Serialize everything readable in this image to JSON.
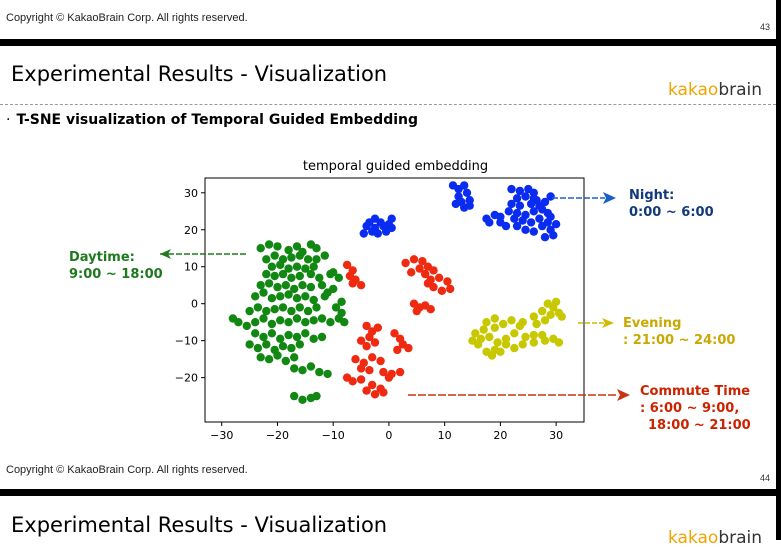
{
  "slides": [
    {
      "copyright": "Copyright © KakaoBrain Corp. All rights reserved.",
      "page_number": "43",
      "title": "Experimental Results - Visualization",
      "logo": {
        "part1": "kakao",
        "part2": "brain"
      },
      "bullet": "T-SNE visualization of Temporal Guided Embedding"
    },
    {
      "copyright": "Copyright © KakaoBrain Corp. All rights reserved.",
      "page_number": "44",
      "title": "Experimental Results - Visualization",
      "logo": {
        "part1": "kakao",
        "part2": "brain"
      }
    }
  ],
  "annotations": {
    "daytime": {
      "line1": "Daytime:",
      "line2": "9:00 ~ 18:00",
      "color": "#1e7a1e"
    },
    "night": {
      "line1": "Night:",
      "line2": "0:00 ~ 6:00",
      "color": "#123a7a"
    },
    "evening": {
      "line1": "Evening",
      "line2": ": 21:00 ~ 24:00",
      "color": "#c9a800"
    },
    "commute": {
      "line1": "Commute Time",
      "line2": ": 6:00 ~ 9:00,",
      "line3": "18:00 ~ 21:00",
      "color": "#cc2200"
    }
  },
  "colors": {
    "accent": "#f0a500",
    "night": "#0a2cf0",
    "day": "#118811",
    "commute": "#f02a10",
    "evening": "#c8c800"
  },
  "chart_data": {
    "type": "scatter",
    "title": "temporal guided embedding",
    "xlabel": "",
    "ylabel": "",
    "xlim": [
      -33,
      35
    ],
    "ylim": [
      -32,
      34
    ],
    "xticks": [
      -30,
      -20,
      -10,
      0,
      10,
      20,
      30
    ],
    "yticks": [
      30,
      20,
      10,
      0,
      -10,
      -20
    ],
    "xtick_labels": [
      "−30",
      "−20",
      "−10",
      "0",
      "10",
      "20",
      "30"
    ],
    "ytick_labels": [
      "30",
      "20",
      "10",
      "0",
      "−10",
      "−20"
    ],
    "grid": false,
    "series": [
      {
        "color": "#0a2cf0",
        "points": [
          [
            11.5,
            32
          ],
          [
            12.5,
            31
          ],
          [
            13.5,
            32
          ],
          [
            14,
            30
          ],
          [
            12.5,
            29
          ],
          [
            13,
            27.5
          ],
          [
            14.5,
            28
          ],
          [
            12,
            27
          ],
          [
            13.5,
            26
          ],
          [
            14.5,
            26.5
          ],
          [
            22,
            31
          ],
          [
            23.5,
            30.5
          ],
          [
            25,
            31
          ],
          [
            26,
            30
          ],
          [
            24.5,
            29
          ],
          [
            23,
            28.5
          ],
          [
            26.5,
            28
          ],
          [
            25.5,
            27
          ],
          [
            23.5,
            26.5
          ],
          [
            22,
            27
          ],
          [
            21.5,
            25
          ],
          [
            23,
            24.5
          ],
          [
            24.5,
            24
          ],
          [
            26,
            25
          ],
          [
            27.5,
            25.5
          ],
          [
            28.5,
            24.5
          ],
          [
            27,
            23
          ],
          [
            25.5,
            22
          ],
          [
            24,
            22.5
          ],
          [
            22.5,
            23
          ],
          [
            20,
            23.5
          ],
          [
            19,
            24
          ],
          [
            17.5,
            23
          ],
          [
            18,
            22
          ],
          [
            20,
            22
          ],
          [
            21,
            21
          ],
          [
            23,
            21
          ],
          [
            24.5,
            20
          ],
          [
            26,
            19.5
          ],
          [
            27.5,
            21
          ],
          [
            28.5,
            22
          ],
          [
            29,
            20
          ],
          [
            29.5,
            18.5
          ],
          [
            28,
            18
          ],
          [
            30,
            21.5
          ],
          [
            29,
            23.5
          ],
          [
            27,
            26.5
          ],
          [
            28,
            27.5
          ],
          [
            29,
            29
          ],
          [
            26,
            28.5
          ],
          [
            -3.5,
            22
          ],
          [
            -2.5,
            23
          ],
          [
            -1.5,
            22
          ],
          [
            -1,
            21
          ],
          [
            -2.5,
            20.5
          ],
          [
            -4,
            21
          ],
          [
            -3,
            19.5
          ],
          [
            -4.5,
            19
          ],
          [
            0,
            21.5
          ],
          [
            0.5,
            23
          ],
          [
            -0.5,
            19.5
          ],
          [
            -2,
            19
          ],
          [
            0.5,
            20.5
          ]
        ]
      },
      {
        "color": "#118811",
        "points": [
          [
            -23,
            15
          ],
          [
            -21.5,
            16
          ],
          [
            -20,
            15.5
          ],
          [
            -18,
            14.5
          ],
          [
            -16.5,
            15.5
          ],
          [
            -15.5,
            14
          ],
          [
            -14,
            16
          ],
          [
            -13,
            15
          ],
          [
            -22,
            12
          ],
          [
            -20.5,
            13
          ],
          [
            -19,
            12
          ],
          [
            -17.5,
            12.5
          ],
          [
            -16,
            13
          ],
          [
            -14.5,
            12
          ],
          [
            -13,
            12
          ],
          [
            -11.5,
            13
          ],
          [
            -21,
            10
          ],
          [
            -19.5,
            10.5
          ],
          [
            -18,
            9.5
          ],
          [
            -16.5,
            10
          ],
          [
            -15,
            9.5
          ],
          [
            -13.5,
            10
          ],
          [
            -22,
            8
          ],
          [
            -20.5,
            7.5
          ],
          [
            -19,
            8
          ],
          [
            -17.5,
            7
          ],
          [
            -16,
            7.5
          ],
          [
            -14,
            8
          ],
          [
            -12.5,
            7
          ],
          [
            -10.5,
            8
          ],
          [
            -23,
            5
          ],
          [
            -21.5,
            5.5
          ],
          [
            -20,
            4.5
          ],
          [
            -18.5,
            5
          ],
          [
            -17,
            4
          ],
          [
            -15.5,
            5
          ],
          [
            -14,
            4.5
          ],
          [
            -12,
            5
          ],
          [
            -10,
            4
          ],
          [
            -24,
            2
          ],
          [
            -22.5,
            3
          ],
          [
            -21,
            1.5
          ],
          [
            -19.5,
            2
          ],
          [
            -18,
            2.5
          ],
          [
            -16.5,
            1.5
          ],
          [
            -15,
            2
          ],
          [
            -13.5,
            1
          ],
          [
            -11.5,
            2
          ],
          [
            -28,
            -4
          ],
          [
            -27,
            -5
          ],
          [
            -25.5,
            -6
          ],
          [
            -24,
            -5
          ],
          [
            -22.5,
            -4
          ],
          [
            -21,
            -5.5
          ],
          [
            -19.5,
            -4.5
          ],
          [
            -18,
            -5
          ],
          [
            -16.5,
            -4
          ],
          [
            -15,
            -5
          ],
          [
            -13.5,
            -4.5
          ],
          [
            -12,
            -4
          ],
          [
            -10.5,
            -5
          ],
          [
            -25,
            -2
          ],
          [
            -23.5,
            -1
          ],
          [
            -22,
            -2
          ],
          [
            -20.5,
            -1.5
          ],
          [
            -19,
            -1
          ],
          [
            -17.5,
            -2
          ],
          [
            -16,
            -1
          ],
          [
            -14.5,
            -2
          ],
          [
            -13,
            -1
          ],
          [
            -24,
            -8
          ],
          [
            -22.5,
            -9
          ],
          [
            -21,
            -8
          ],
          [
            -19.5,
            -9.5
          ],
          [
            -18,
            -8.5
          ],
          [
            -16.5,
            -9
          ],
          [
            -15,
            -8
          ],
          [
            -13.5,
            -9.5
          ],
          [
            -12,
            -9
          ],
          [
            -25,
            -11
          ],
          [
            -23.5,
            -12
          ],
          [
            -22,
            -11
          ],
          [
            -20.5,
            -12.5
          ],
          [
            -19,
            -11.5
          ],
          [
            -17.5,
            -12
          ],
          [
            -16,
            -11
          ],
          [
            -23,
            -14.5
          ],
          [
            -21.5,
            -15
          ],
          [
            -20,
            -14
          ],
          [
            -18.5,
            -15.5
          ],
          [
            -17,
            -14.5
          ],
          [
            -17,
            -17.5
          ],
          [
            -15.5,
            -18
          ],
          [
            -14,
            -17
          ],
          [
            -12.5,
            -18.5
          ],
          [
            -11,
            -19
          ],
          [
            -17,
            -25
          ],
          [
            -15.5,
            -26
          ],
          [
            -14,
            -25.5
          ],
          [
            -13,
            -25
          ],
          [
            -9.5,
            -1
          ],
          [
            -8.5,
            -2.5
          ],
          [
            -9,
            -4
          ],
          [
            -8,
            -5
          ],
          [
            -10,
            8.5
          ],
          [
            -9,
            7
          ],
          [
            -11,
            3
          ],
          [
            -8.5,
            0.5
          ]
        ]
      },
      {
        "color": "#f02a10",
        "points": [
          [
            -7.5,
            10.5
          ],
          [
            -6.5,
            9
          ],
          [
            -7,
            7.5
          ],
          [
            -6,
            6.5
          ],
          [
            -5,
            5
          ],
          [
            -6.5,
            5.5
          ],
          [
            3,
            11
          ],
          [
            4.5,
            12
          ],
          [
            6,
            11.5
          ],
          [
            7,
            10
          ],
          [
            5.5,
            9.5
          ],
          [
            4,
            8.5
          ],
          [
            6.5,
            8
          ],
          [
            8,
            9
          ],
          [
            7.5,
            6.5
          ],
          [
            9,
            7
          ],
          [
            10.5,
            6
          ],
          [
            11,
            4
          ],
          [
            9.5,
            3.5
          ],
          [
            8,
            4.5
          ],
          [
            7,
            5.5
          ],
          [
            4.5,
            0
          ],
          [
            5.5,
            -1
          ],
          [
            6.5,
            -0.5
          ],
          [
            7.5,
            -1.5
          ],
          [
            5,
            -2
          ],
          [
            -4,
            -6
          ],
          [
            -3,
            -7.5
          ],
          [
            -2,
            -6.5
          ],
          [
            -3.5,
            -9
          ],
          [
            -5,
            -10
          ],
          [
            -2.5,
            -10.5
          ],
          [
            -4,
            -11.5
          ],
          [
            1,
            -8
          ],
          [
            2,
            -9.5
          ],
          [
            2.5,
            -11
          ],
          [
            3.5,
            -12
          ],
          [
            1.5,
            -12.5
          ],
          [
            -6,
            -15
          ],
          [
            -4.5,
            -16
          ],
          [
            -3,
            -14.5
          ],
          [
            -1.5,
            -15.5
          ],
          [
            -5,
            -17.5
          ],
          [
            -3.5,
            -18
          ],
          [
            -7.5,
            -20
          ],
          [
            -6.5,
            -21
          ],
          [
            -5,
            -20.5
          ],
          [
            -1,
            -18.5
          ],
          [
            0.5,
            -19
          ],
          [
            2,
            -18.5
          ],
          [
            0,
            -20
          ],
          [
            -3,
            -22
          ],
          [
            -1.5,
            -23
          ],
          [
            -2.5,
            -24.5
          ],
          [
            -1,
            -24
          ],
          [
            -4,
            -23.5
          ]
        ]
      },
      {
        "color": "#c8c800",
        "points": [
          [
            17.5,
            -5
          ],
          [
            19,
            -4
          ],
          [
            20.5,
            -5.5
          ],
          [
            22,
            -4.5
          ],
          [
            19,
            -6.5
          ],
          [
            17,
            -7
          ],
          [
            15.5,
            -8
          ],
          [
            16.5,
            -9.5
          ],
          [
            18,
            -9
          ],
          [
            19.5,
            -10.5
          ],
          [
            21,
            -9.5
          ],
          [
            22.5,
            -8
          ],
          [
            21,
            -11
          ],
          [
            19,
            -12.5
          ],
          [
            17.5,
            -13
          ],
          [
            18.5,
            -14
          ],
          [
            20,
            -13
          ],
          [
            16,
            -11
          ],
          [
            23.5,
            -6
          ],
          [
            24.5,
            -9
          ],
          [
            26,
            -8.5
          ],
          [
            24,
            -11
          ],
          [
            22.5,
            -12
          ],
          [
            15,
            -10
          ],
          [
            26,
            -3.5
          ],
          [
            27.5,
            -2
          ],
          [
            29,
            -3
          ],
          [
            28,
            -4.5
          ],
          [
            26.5,
            -5.5
          ],
          [
            29.5,
            -1
          ],
          [
            30.5,
            -2.5
          ],
          [
            28.5,
            0
          ],
          [
            30,
            0.5
          ],
          [
            31,
            -3.5
          ],
          [
            27.5,
            -8.5
          ],
          [
            26,
            -10.5
          ],
          [
            28,
            -10
          ],
          [
            29.5,
            -9.5
          ],
          [
            30.5,
            -10.5
          ],
          [
            24,
            -5
          ]
        ]
      }
    ]
  }
}
